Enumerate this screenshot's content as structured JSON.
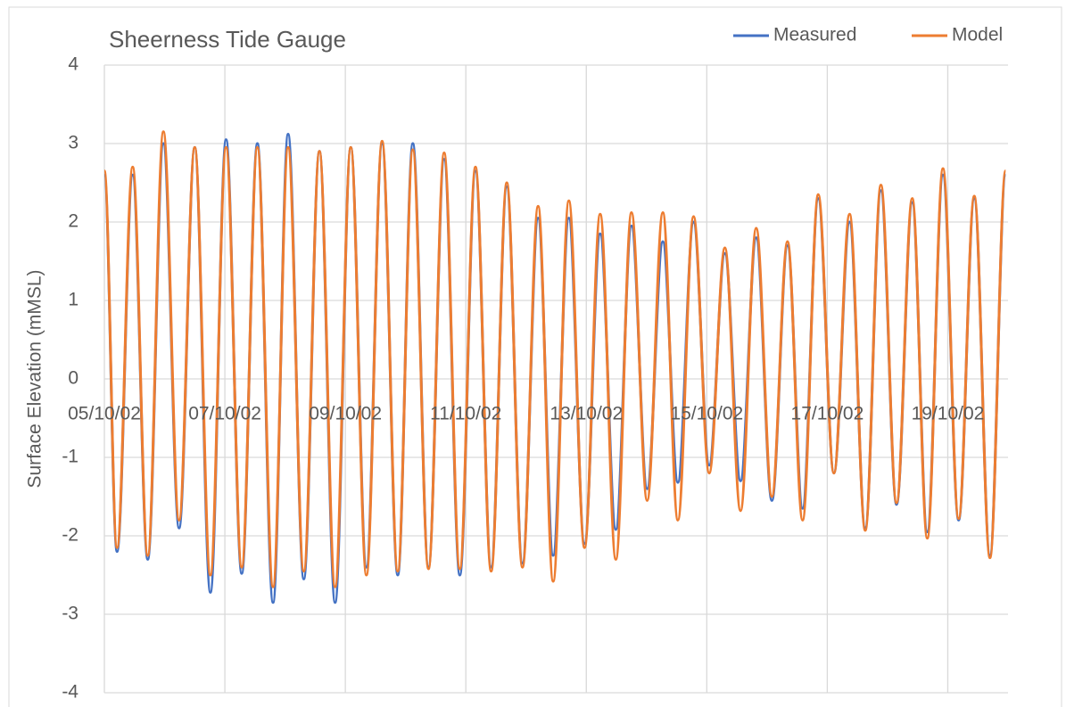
{
  "chart_data": {
    "type": "line",
    "title": "Sheerness Tide Gauge",
    "y_label": "Surface Elevation (mMSL)",
    "x": [
      0,
      0.21,
      0.47,
      0.72,
      0.98,
      1.24,
      1.5,
      1.76,
      2.02,
      2.28,
      2.54,
      2.8,
      3.05,
      3.31,
      3.57,
      3.83,
      4.09,
      4.35,
      4.61,
      4.87,
      5.12,
      5.38,
      5.64,
      5.9,
      6.16,
      6.42,
      6.68,
      6.94,
      7.2,
      7.45,
      7.71,
      7.97,
      8.23,
      8.49,
      8.75,
      9.01,
      9.27,
      9.52,
      9.78,
      10.04,
      10.3,
      10.56,
      10.82,
      11.08,
      11.34,
      11.59,
      11.85,
      12.11,
      12.37,
      12.63,
      12.89,
      13.15,
      13.41,
      13.66,
      13.92,
      14.18,
      14.44,
      14.7,
      14.96
    ],
    "series": [
      {
        "name": "Measured",
        "color": "#4472c4",
        "values": [
          2.6,
          -2.2,
          2.6,
          -2.3,
          3.0,
          -1.9,
          2.95,
          -2.72,
          3.05,
          -2.48,
          3.0,
          -2.85,
          3.12,
          -2.55,
          2.9,
          -2.85,
          2.95,
          -2.4,
          3.0,
          -2.5,
          3.0,
          -2.4,
          2.8,
          -2.5,
          2.65,
          -2.4,
          2.45,
          -2.35,
          2.05,
          -2.25,
          2.05,
          -2.1,
          1.85,
          -1.92,
          1.95,
          -1.4,
          1.75,
          -1.32,
          2.0,
          -1.1,
          1.6,
          -1.3,
          1.8,
          -1.55,
          1.7,
          -1.65,
          2.3,
          -1.2,
          2.0,
          -1.9,
          2.4,
          -1.6,
          2.25,
          -1.95,
          2.6,
          -1.8,
          2.3,
          -2.25,
          2.6
        ]
      },
      {
        "name": "Model",
        "color": "#ed7d31",
        "values": [
          2.65,
          -2.15,
          2.7,
          -2.25,
          3.15,
          -1.8,
          2.95,
          -2.5,
          2.95,
          -2.4,
          2.95,
          -2.65,
          2.95,
          -2.45,
          2.9,
          -2.65,
          2.95,
          -2.5,
          3.03,
          -2.45,
          2.92,
          -2.42,
          2.88,
          -2.42,
          2.7,
          -2.45,
          2.5,
          -2.4,
          2.2,
          -2.58,
          2.27,
          -2.15,
          2.1,
          -2.3,
          2.12,
          -1.55,
          2.12,
          -1.8,
          2.07,
          -1.2,
          1.67,
          -1.68,
          1.92,
          -1.5,
          1.75,
          -1.8,
          2.35,
          -1.2,
          2.1,
          -1.93,
          2.47,
          -1.58,
          2.3,
          -2.03,
          2.68,
          -1.78,
          2.33,
          -2.28,
          2.65
        ]
      }
    ],
    "xlim": [
      0,
      15
    ],
    "xticks": [
      {
        "value": 0,
        "label": "05/10/02"
      },
      {
        "value": 2,
        "label": "07/10/02"
      },
      {
        "value": 4,
        "label": "09/10/02"
      },
      {
        "value": 6,
        "label": "11/10/02"
      },
      {
        "value": 8,
        "label": "13/10/02"
      },
      {
        "value": 10,
        "label": "15/10/02"
      },
      {
        "value": 12,
        "label": "17/10/02"
      },
      {
        "value": 14,
        "label": "19/10/02"
      }
    ],
    "ylim": [
      -4,
      4
    ],
    "yticks": [
      -4,
      -3,
      -2,
      -1,
      0,
      1,
      2,
      3,
      4
    ],
    "grid": true,
    "legend": "top-right"
  }
}
